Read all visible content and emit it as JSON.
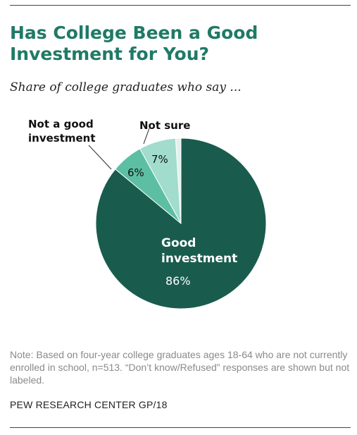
{
  "title": "Has College Been a Good Investment for You?",
  "subtitle": "Share of college graduates who say ...",
  "note": "Note: Based on four-year college graduates ages 18-64 who are not currently enrolled in school, n=513. “Don’t know/Refused” responses are shown but not labeled.",
  "source": "PEW RESEARCH CENTER GP/18",
  "chart_data": {
    "type": "pie",
    "start_angle_deg": 0,
    "direction": "clockwise",
    "slices": [
      {
        "label_lines": [
          "Good",
          "investment"
        ],
        "value": 86,
        "value_label": "86%",
        "color": "#195c4e"
      },
      {
        "label_lines": [
          "Not a good",
          "investment"
        ],
        "value": 6,
        "value_label": "6%",
        "color": "#5cbfa3"
      },
      {
        "label_lines": [
          "Not sure"
        ],
        "value": 7,
        "value_label": "7%",
        "color": "#a1dccd"
      },
      {
        "label_lines": [],
        "value": 1,
        "value_label": "",
        "color": "#e3f1ed"
      }
    ]
  }
}
